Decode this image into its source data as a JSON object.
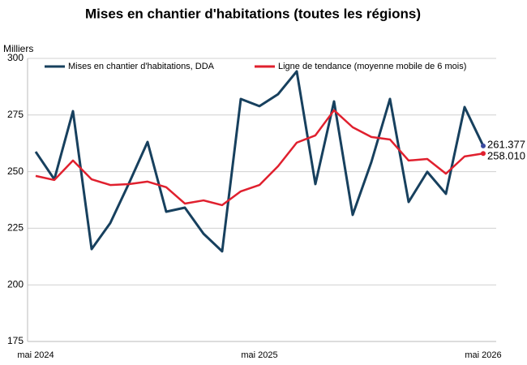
{
  "chart_data": {
    "type": "line",
    "title": "Mises en chantier d'habitations (toutes les régions)",
    "y_label": "Milliers",
    "categories": [
      "mai 2024",
      null,
      null,
      null,
      null,
      null,
      null,
      null,
      null,
      null,
      null,
      null,
      "mai 2025",
      null,
      null,
      null,
      null,
      null,
      null,
      null,
      null,
      null,
      null,
      null,
      "mai 2026"
    ],
    "series": [
      {
        "name": "Mises en chantier d'habitations, DDA",
        "color": "#17405e",
        "values": [
          258.8,
          246.6,
          276.7,
          215.8,
          227.3,
          244.8,
          263.1,
          232.3,
          234.1,
          222.6,
          214.8,
          282.1,
          278.9,
          284.2,
          294.3,
          244.5,
          281.0,
          230.9,
          254.2,
          282.1,
          236.6,
          249.9,
          240.2,
          278.5,
          261.377
        ],
        "value_labels": [
          null,
          null,
          null,
          null,
          null,
          null,
          null,
          null,
          null,
          null,
          null,
          null,
          null,
          null,
          null,
          null,
          null,
          null,
          null,
          null,
          null,
          null,
          null,
          null,
          "261.377"
        ]
      },
      {
        "name": "Ligne de tendance (moyenne mobile de 6 mois)",
        "color": "#e0202e",
        "values": [
          248.1,
          246.3,
          254.9,
          246.6,
          244.1,
          244.5,
          245.6,
          243.1,
          235.9,
          237.3,
          235.2,
          241.3,
          244.1,
          252.4,
          262.8,
          266.0,
          277.1,
          269.6,
          265.3,
          264.2,
          254.9,
          255.6,
          249.1,
          256.7,
          258.01
        ],
        "value_labels": [
          null,
          null,
          null,
          null,
          null,
          null,
          null,
          null,
          null,
          null,
          null,
          null,
          null,
          null,
          null,
          null,
          null,
          null,
          null,
          null,
          null,
          null,
          null,
          null,
          "258.010"
        ]
      }
    ],
    "ylim": [
      175,
      300
    ],
    "yticks": [
      175,
      200,
      225,
      250,
      275,
      300
    ],
    "grid": true
  }
}
